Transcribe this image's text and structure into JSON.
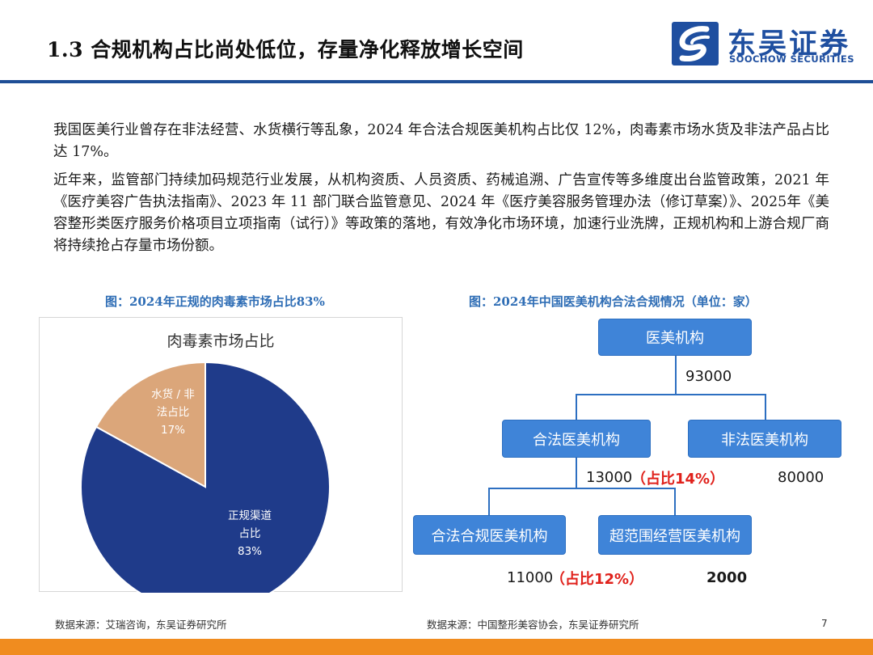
{
  "header": {
    "title": "1.3 合规机构占比尚处低位，存量净化释放增长空间",
    "logo_cn": "东吴证券",
    "logo_en": "SOOCHOW SECURITIES",
    "accent_color": "#1f4e96"
  },
  "body": {
    "paragraphs": [
      "我国医美行业曾存在非法经营、水货横行等乱象，2024 年合法合规医美机构占比仅 12%，肉毒素市场水货及非法产品占比达 17%。",
      "近年来，监管部门持续加码规范行业发展，从机构资质、人员资质、药械追溯、广告宣传等多维度出台监管政策，2021 年《医疗美容广告执法指南》、2023 年 11 部门联合监管意见、2024 年《医疗美容服务管理办法（修订草案）》、2025年《美容整形类医疗服务价格项目立项指南（试行）》等政策的落地，有效净化市场环境，加速行业洗牌，正规机构和上游合规厂商将持续抢占存量市场份额。"
    ]
  },
  "figure_left": {
    "caption": "图：2024年正规的肉毒素市场占比83%",
    "source": "数据来源：艾瑞咨询，东吴证券研究所"
  },
  "figure_right": {
    "caption": "图：2024年中国医美机构合法合规情况（单位：家）",
    "source": "数据来源：中国整形美容协会，东吴证券研究所",
    "nodes": {
      "root": "医美机构",
      "legal": "合法医美机构",
      "illegal": "非法医美机构",
      "compliant": "合法合规医美机构",
      "overscope": "超范围经营医美机构"
    },
    "values": {
      "root": "93000",
      "legal": "13000",
      "legal_share": "（占比14%）",
      "illegal": "80000",
      "compliant": "11000",
      "compliant_share": "（占比12%）",
      "overscope": "2000"
    },
    "box_color": "#3f84d8",
    "share_color": "#e0211b"
  },
  "chart_data": {
    "type": "pie",
    "title": "肉毒素市场占比",
    "slices": [
      {
        "label_line1": "正规渠道",
        "label_line2": "占比",
        "value": 83,
        "value_label": "83%",
        "color": "#1f3b8a"
      },
      {
        "label_line1": "水货 / 非",
        "label_line2": "法占比",
        "value": 17,
        "value_label": "17%",
        "color": "#dba67a"
      }
    ]
  },
  "footer": {
    "page_number": "7",
    "bar_color": "#f08c1f"
  }
}
